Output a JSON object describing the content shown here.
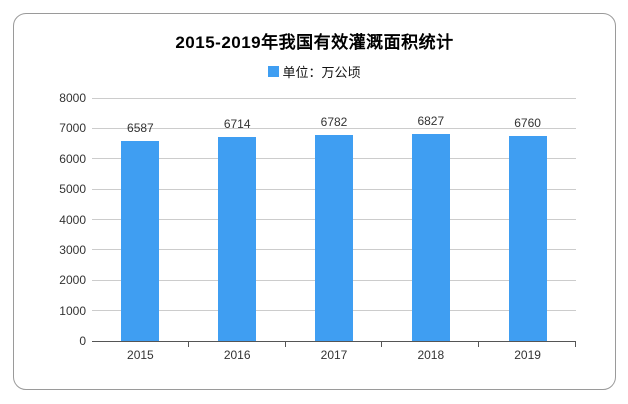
{
  "card": {
    "border_color": "#9a9a9a",
    "background": "#ffffff"
  },
  "title": "2015-2019年我国有效灌溉面积统计",
  "legend": {
    "label": "单位：万公顷",
    "marker_color": "#3F9EF2"
  },
  "chart_data": {
    "type": "bar",
    "title": "2015-2019年我国有效灌溉面积统计",
    "legend_entries": [
      "单位：万公顷"
    ],
    "categories": [
      "2015",
      "2016",
      "2017",
      "2018",
      "2019"
    ],
    "values": [
      6587,
      6714,
      6782,
      6827,
      6760
    ],
    "xlabel": "",
    "ylabel": "",
    "ylim": [
      0,
      8000
    ],
    "ytick_step": 1000,
    "ytick_labels": [
      "0",
      "1000",
      "2000",
      "3000",
      "4000",
      "5000",
      "6000",
      "7000",
      "8000"
    ],
    "bar_color": "#3F9EF2",
    "grid": true,
    "gridline_color": "#cccccc",
    "axis_color": "#555555",
    "text_color": "#333333",
    "value_labels_shown": true,
    "legend_position": "top-center"
  }
}
